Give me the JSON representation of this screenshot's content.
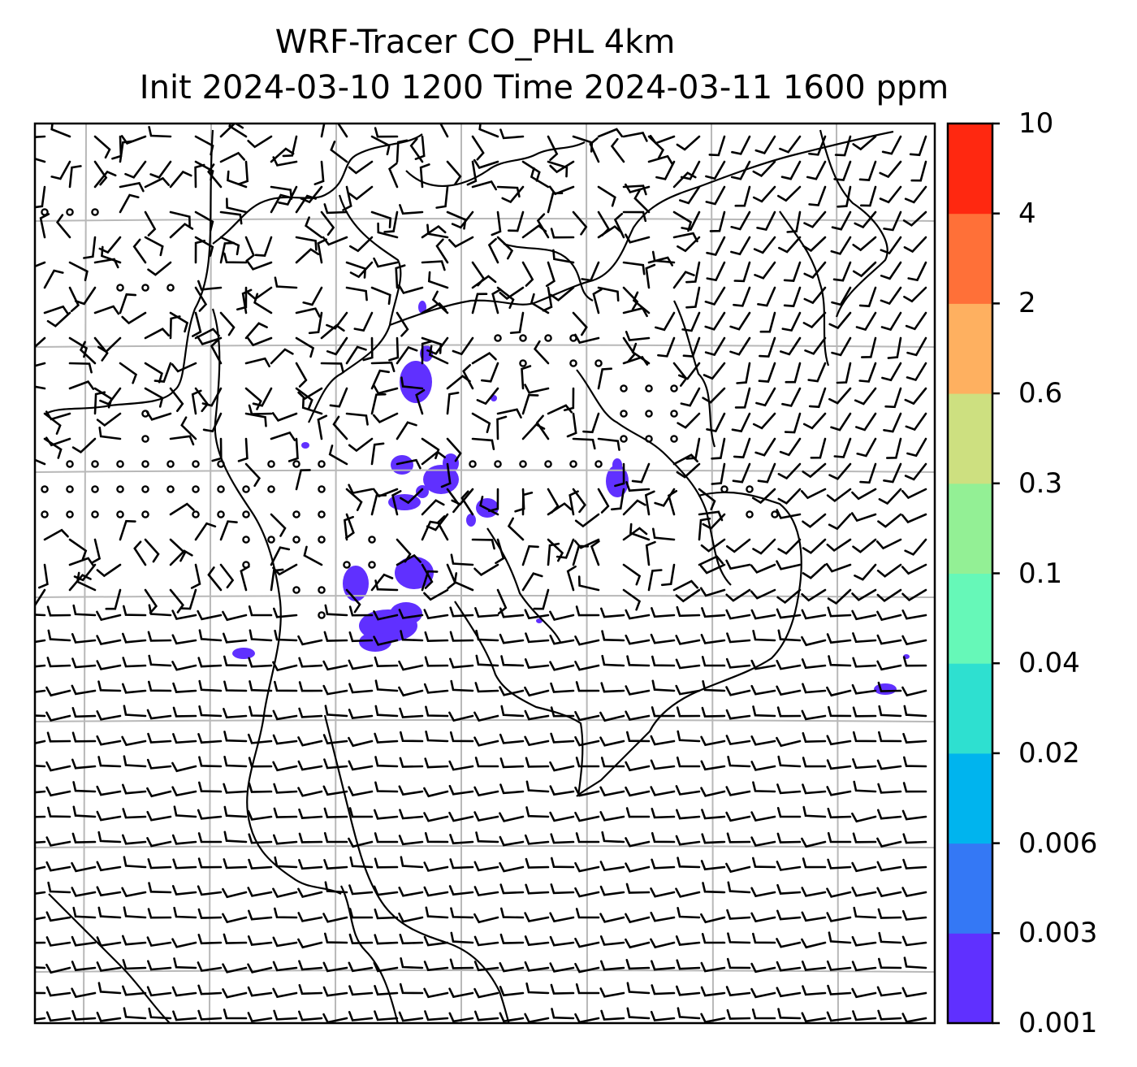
{
  "title": {
    "line1": "WRF-Tracer CO_PHL 4km",
    "line2": "Init 2024-03-10 1200 Time 2024-03-11 1600 ppm"
  },
  "colorbar": {
    "levels": [
      "0.001",
      "0.003",
      "0.006",
      "0.02",
      "0.04",
      "0.1",
      "0.3",
      "0.6",
      "2",
      "4",
      "10"
    ],
    "colors": [
      "#6030ff",
      "#3478f5",
      "#00b4ee",
      "#2ee0d0",
      "#66f8b8",
      "#93f095",
      "#cde080",
      "#feb060",
      "#ff7038",
      "#ff2810"
    ]
  },
  "colors": {
    "plume": "#6030ff",
    "gridline": "#b8b8b8",
    "coastline": "#000000",
    "barb": "#000000"
  }
}
